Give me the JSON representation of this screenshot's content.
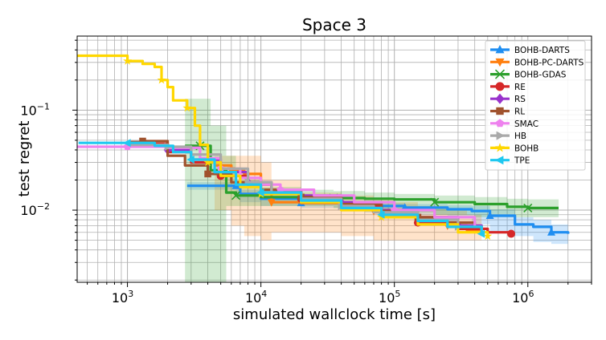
{
  "chart_data": {
    "type": "line",
    "title": "Space 3",
    "xlabel": "simulated wallclock time [s]",
    "ylabel": "test regret",
    "xscale": "log",
    "yscale": "log",
    "xlim": [
      420,
      3000000
    ],
    "ylim": [
      0.0019,
      0.55
    ],
    "grid": true,
    "legend_position": "top-right",
    "x_ticks": [
      {
        "value": 1000,
        "base": "10",
        "exp": "3"
      },
      {
        "value": 10000,
        "base": "10",
        "exp": "4"
      },
      {
        "value": 100000,
        "base": "10",
        "exp": "5"
      },
      {
        "value": 1000000,
        "base": "10",
        "exp": "6"
      }
    ],
    "y_ticks": [
      {
        "value": 0.1,
        "base": "10",
        "exp": "−1"
      },
      {
        "value": 0.01,
        "base": "10",
        "exp": "−2"
      }
    ],
    "series": [
      {
        "name": "BOHB-DARTS",
        "color": "#1f8ef1",
        "marker": "triangle-up",
        "points": [
          [
            2800,
            0.0175
          ],
          [
            6500,
            0.0175
          ],
          [
            7000,
            0.0145
          ],
          [
            10000,
            0.013
          ],
          [
            20000,
            0.0118
          ],
          [
            40000,
            0.0112
          ],
          [
            60000,
            0.011
          ],
          [
            120000,
            0.0106
          ],
          [
            250000,
            0.0102
          ],
          [
            380000,
            0.0098
          ],
          [
            520000,
            0.0088
          ],
          [
            800000,
            0.0072
          ],
          [
            1100000,
            0.0068
          ],
          [
            1500000,
            0.006
          ],
          [
            2000000,
            0.0058
          ]
        ],
        "band": {
          "lower": [
            0.016,
            0.016,
            0.013,
            0.012,
            0.011,
            0.0105,
            0.01,
            0.0095,
            0.009,
            0.0085,
            0.0072,
            0.006,
            0.0055,
            0.0048,
            0.0046
          ],
          "upper": [
            0.019,
            0.019,
            0.016,
            0.014,
            0.0125,
            0.012,
            0.0118,
            0.0115,
            0.0112,
            0.011,
            0.0102,
            0.0085,
            0.008,
            0.0072,
            0.007
          ]
        }
      },
      {
        "name": "BOHB-PC-DARTS",
        "color": "#ff7f0e",
        "marker": "triangle-down",
        "points": [
          [
            4500,
            0.028
          ],
          [
            6000,
            0.025
          ],
          [
            7500,
            0.023
          ],
          [
            10000,
            0.018
          ],
          [
            12000,
            0.012
          ],
          [
            20000,
            0.0118
          ],
          [
            40000,
            0.011
          ],
          [
            70000,
            0.0098
          ],
          [
            100000,
            0.0085
          ],
          [
            150000,
            0.0082
          ],
          [
            250000,
            0.007
          ],
          [
            350000,
            0.0062
          ],
          [
            450000,
            0.006
          ]
        ],
        "band": {
          "lower": [
            0.015,
            0.01,
            0.007,
            0.0055,
            0.005,
            0.006,
            0.006,
            0.0055,
            0.005,
            0.005,
            0.005,
            0.005,
            0.005
          ],
          "upper": [
            0.035,
            0.035,
            0.035,
            0.03,
            0.02,
            0.015,
            0.014,
            0.013,
            0.012,
            0.011,
            0.01,
            0.009,
            0.0085
          ]
        }
      },
      {
        "name": "BOHB-GDAS",
        "color": "#2ca02c",
        "marker": "x",
        "points": [
          [
            2700,
            0.044
          ],
          [
            3500,
            0.044
          ],
          [
            4200,
            0.025
          ],
          [
            5500,
            0.015
          ],
          [
            6500,
            0.014
          ],
          [
            10000,
            0.0135
          ],
          [
            20000,
            0.0132
          ],
          [
            35000,
            0.0132
          ],
          [
            60000,
            0.013
          ],
          [
            100000,
            0.0128
          ],
          [
            200000,
            0.012
          ],
          [
            400000,
            0.0115
          ],
          [
            700000,
            0.0108
          ],
          [
            1000000,
            0.0105
          ],
          [
            1700000,
            0.0105
          ]
        ],
        "band": {
          "lower": [
            0.0018,
            0.0018,
            0.0018,
            0.0018,
            0.011,
            0.011,
            0.011,
            0.011,
            0.0105,
            0.01,
            0.0095,
            0.009,
            0.0085,
            0.0085,
            0.0085
          ],
          "upper": [
            0.13,
            0.13,
            0.07,
            0.035,
            0.02,
            0.017,
            0.016,
            0.0155,
            0.015,
            0.0145,
            0.014,
            0.0135,
            0.013,
            0.0128,
            0.0128
          ]
        }
      },
      {
        "name": "RE",
        "color": "#d62728",
        "marker": "circle",
        "points": [
          [
            1000,
            0.046
          ],
          [
            1400,
            0.046
          ],
          [
            2000,
            0.038
          ],
          [
            3000,
            0.03
          ],
          [
            5000,
            0.022
          ],
          [
            8000,
            0.018
          ],
          [
            12000,
            0.015
          ],
          [
            20000,
            0.013
          ],
          [
            40000,
            0.011
          ],
          [
            80000,
            0.009
          ],
          [
            150000,
            0.0075
          ],
          [
            300000,
            0.0065
          ],
          [
            500000,
            0.006
          ],
          [
            750000,
            0.0058
          ]
        ]
      },
      {
        "name": "RS",
        "color": "#9932cc",
        "marker": "diamond",
        "points": [
          [
            1000,
            0.045
          ],
          [
            2000,
            0.04
          ],
          [
            3000,
            0.032
          ],
          [
            5000,
            0.024
          ],
          [
            8000,
            0.019
          ],
          [
            12000,
            0.016
          ],
          [
            20000,
            0.014
          ],
          [
            40000,
            0.012
          ],
          [
            80000,
            0.01
          ],
          [
            150000,
            0.0085
          ],
          [
            300000,
            0.007
          ],
          [
            450000,
            0.0064
          ]
        ]
      },
      {
        "name": "RL",
        "color": "#a0522d",
        "marker": "square",
        "points": [
          [
            1000,
            0.048
          ],
          [
            1300,
            0.049
          ],
          [
            2000,
            0.035
          ],
          [
            2700,
            0.028
          ],
          [
            4000,
            0.023
          ],
          [
            6000,
            0.019
          ],
          [
            10000,
            0.016
          ],
          [
            20000,
            0.0135
          ],
          [
            40000,
            0.0115
          ],
          [
            80000,
            0.0098
          ],
          [
            150000,
            0.0085
          ],
          [
            250000,
            0.0075
          ],
          [
            400000,
            0.0066
          ]
        ]
      },
      {
        "name": "SMAC",
        "color": "#ee82ee",
        "marker": "pentagon",
        "points": [
          [
            420,
            0.043
          ],
          [
            1000,
            0.043
          ],
          [
            2000,
            0.042
          ],
          [
            3500,
            0.033
          ],
          [
            5000,
            0.026
          ],
          [
            7000,
            0.021
          ],
          [
            10000,
            0.018
          ],
          [
            14000,
            0.016
          ],
          [
            25000,
            0.014
          ],
          [
            50000,
            0.012
          ],
          [
            100000,
            0.01
          ],
          [
            200000,
            0.0085
          ],
          [
            400000,
            0.007
          ]
        ]
      },
      {
        "name": "HB",
        "color": "#a9a9a9",
        "marker": "triangle-right",
        "points": [
          [
            1000,
            0.045
          ],
          [
            2000,
            0.043
          ],
          [
            3000,
            0.036
          ],
          [
            5000,
            0.026
          ],
          [
            8000,
            0.019
          ],
          [
            12000,
            0.015
          ],
          [
            20000,
            0.013
          ],
          [
            40000,
            0.011
          ],
          [
            70000,
            0.0095
          ],
          [
            150000,
            0.008
          ],
          [
            300000,
            0.0068
          ],
          [
            450000,
            0.0062
          ]
        ]
      },
      {
        "name": "BOHB",
        "color": "#ffd700",
        "marker": "star",
        "points": [
          [
            420,
            0.35
          ],
          [
            1000,
            0.31
          ],
          [
            1300,
            0.29
          ],
          [
            1600,
            0.27
          ],
          [
            1800,
            0.2
          ],
          [
            2000,
            0.17
          ],
          [
            2200,
            0.125
          ],
          [
            2800,
            0.105
          ],
          [
            3200,
            0.07
          ],
          [
            3500,
            0.045
          ],
          [
            4000,
            0.03
          ],
          [
            5000,
            0.022
          ],
          [
            7000,
            0.017
          ],
          [
            10000,
            0.0145
          ],
          [
            20000,
            0.012
          ],
          [
            40000,
            0.01
          ],
          [
            80000,
            0.0085
          ],
          [
            150000,
            0.0072
          ],
          [
            300000,
            0.006
          ],
          [
            500000,
            0.0055
          ]
        ]
      },
      {
        "name": "TPE",
        "color": "#1ec8f0",
        "marker": "triangle-left",
        "points": [
          [
            430,
            0.047
          ],
          [
            1000,
            0.047
          ],
          [
            1600,
            0.044
          ],
          [
            2200,
            0.038
          ],
          [
            3000,
            0.032
          ],
          [
            4500,
            0.024
          ],
          [
            6500,
            0.018
          ],
          [
            10000,
            0.015
          ],
          [
            20000,
            0.0125
          ],
          [
            40000,
            0.0105
          ],
          [
            80000,
            0.009
          ],
          [
            150000,
            0.0078
          ],
          [
            250000,
            0.0068
          ],
          [
            450000,
            0.0058
          ]
        ]
      }
    ]
  }
}
